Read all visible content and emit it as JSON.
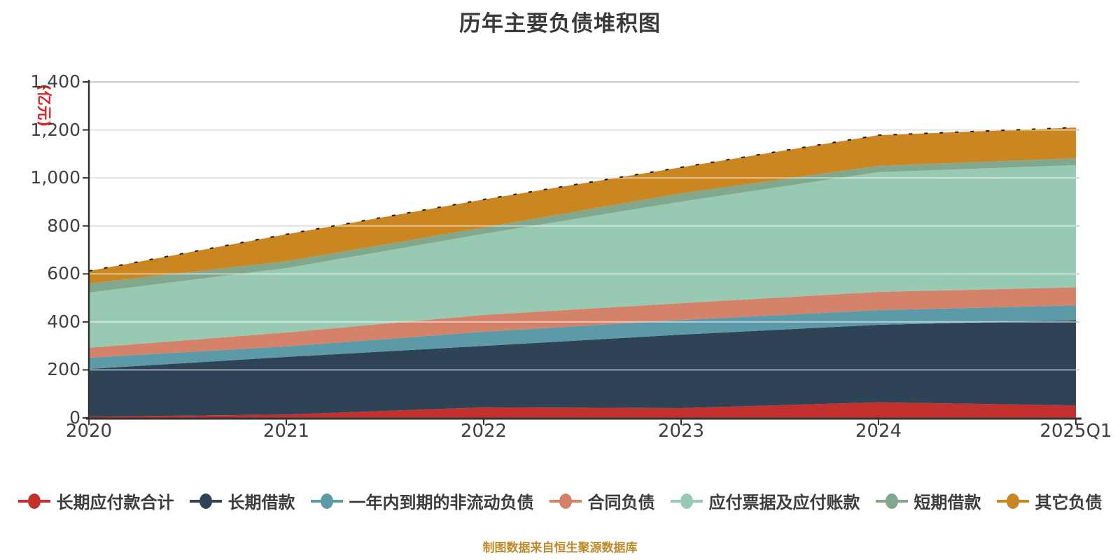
{
  "title": "历年主要负债堆积图",
  "caption": "制图数据来自恒生聚源数据库",
  "y_axis": {
    "unit_label": "(亿元)",
    "tick_labels": [
      "0",
      "200",
      "400",
      "600",
      "800",
      "1,000",
      "1,200",
      "1,400"
    ]
  },
  "chart_data": {
    "type": "area",
    "stacked": true,
    "title": "历年主要负债堆积图",
    "categories": [
      "2020",
      "2021",
      "2022",
      "2023",
      "2024",
      "2025Q1"
    ],
    "series": [
      {
        "name": "长期应付款合计",
        "color": "#c3312f",
        "values": [
          5,
          14,
          44,
          41,
          65,
          52
        ]
      },
      {
        "name": "长期借款",
        "color": "#2e4356",
        "values": [
          199,
          240,
          256,
          306,
          323,
          355
        ]
      },
      {
        "name": "一年内到期的非流动负债",
        "color": "#5d9aa8",
        "values": [
          47,
          44,
          59,
          61,
          61,
          62
        ]
      },
      {
        "name": "合同负债",
        "color": "#d5826b",
        "values": [
          41,
          58,
          70,
          70,
          76,
          75
        ]
      },
      {
        "name": "应付票据及应付账款",
        "color": "#98c9b2",
        "values": [
          230,
          268,
          338,
          423,
          499,
          509
        ]
      },
      {
        "name": "短期借款",
        "color": "#81a88c",
        "values": [
          38,
          29,
          26,
          35,
          26,
          29
        ]
      },
      {
        "name": "其它负债",
        "color": "#ca8620",
        "values": [
          52,
          112,
          117,
          108,
          128,
          128
        ]
      }
    ],
    "totals": [
      612,
      765,
      910,
      1044,
      1178,
      1210
    ],
    "ylim": [
      0,
      1400
    ],
    "y_tick_step": 200,
    "grid": true,
    "legend_position": "bottom",
    "colors": {
      "axis": "#333333",
      "gridline": "#cbcbcb",
      "grid_overlay_on_areas": "rgba(255,255,255,0.5)",
      "total_edge_dash": "#1c1c1c",
      "title_text": "#3a3a3a",
      "tick_text": "#3f3f3f",
      "unit_text": "#e01f1f",
      "caption_text": "#bf8a2c"
    }
  }
}
